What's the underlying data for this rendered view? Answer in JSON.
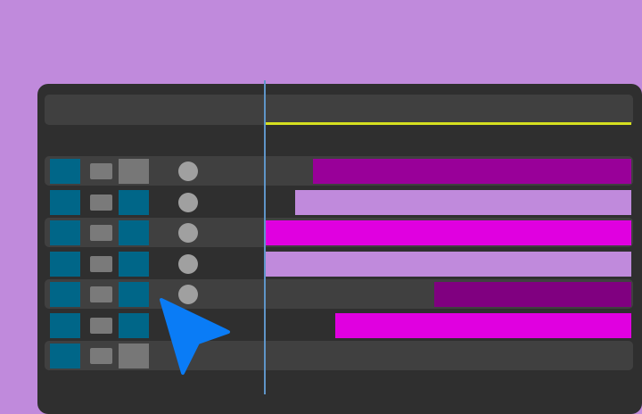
{
  "colors": {
    "accent": "#0a7cf6",
    "playhead": "#5f95c8",
    "marker_line": "#d6e020",
    "teal": "#006688",
    "gray": "#777777"
  },
  "tracks": [
    {
      "left_color": "#006688",
      "right_color": "#777777",
      "has_dot": true,
      "bar": {
        "start": 0.13,
        "end": 1.0,
        "color": "#990099"
      }
    },
    {
      "left_color": "#006688",
      "right_color": "#006688",
      "has_dot": true,
      "bar": {
        "start": 0.08,
        "end": 1.0,
        "color": "#c08adc"
      }
    },
    {
      "left_color": "#006688",
      "right_color": "#006688",
      "has_dot": true,
      "bar": {
        "start": 0.0,
        "end": 1.0,
        "color": "#e000e0"
      }
    },
    {
      "left_color": "#006688",
      "right_color": "#006688",
      "has_dot": true,
      "bar": {
        "start": 0.0,
        "end": 1.0,
        "color": "#c08adc"
      }
    },
    {
      "left_color": "#006688",
      "right_color": "#006688",
      "has_dot": true,
      "bar": {
        "start": 0.46,
        "end": 1.0,
        "color": "#800080"
      }
    },
    {
      "left_color": "#006688",
      "right_color": "#006688",
      "has_dot": false,
      "bar": {
        "start": 0.19,
        "end": 1.0,
        "color": "#e000e0"
      }
    },
    {
      "left_color": "#006688",
      "right_color": "#777777",
      "has_dot": false,
      "bar": null
    }
  ],
  "cursor_icon": "pointer-arrow-icon"
}
